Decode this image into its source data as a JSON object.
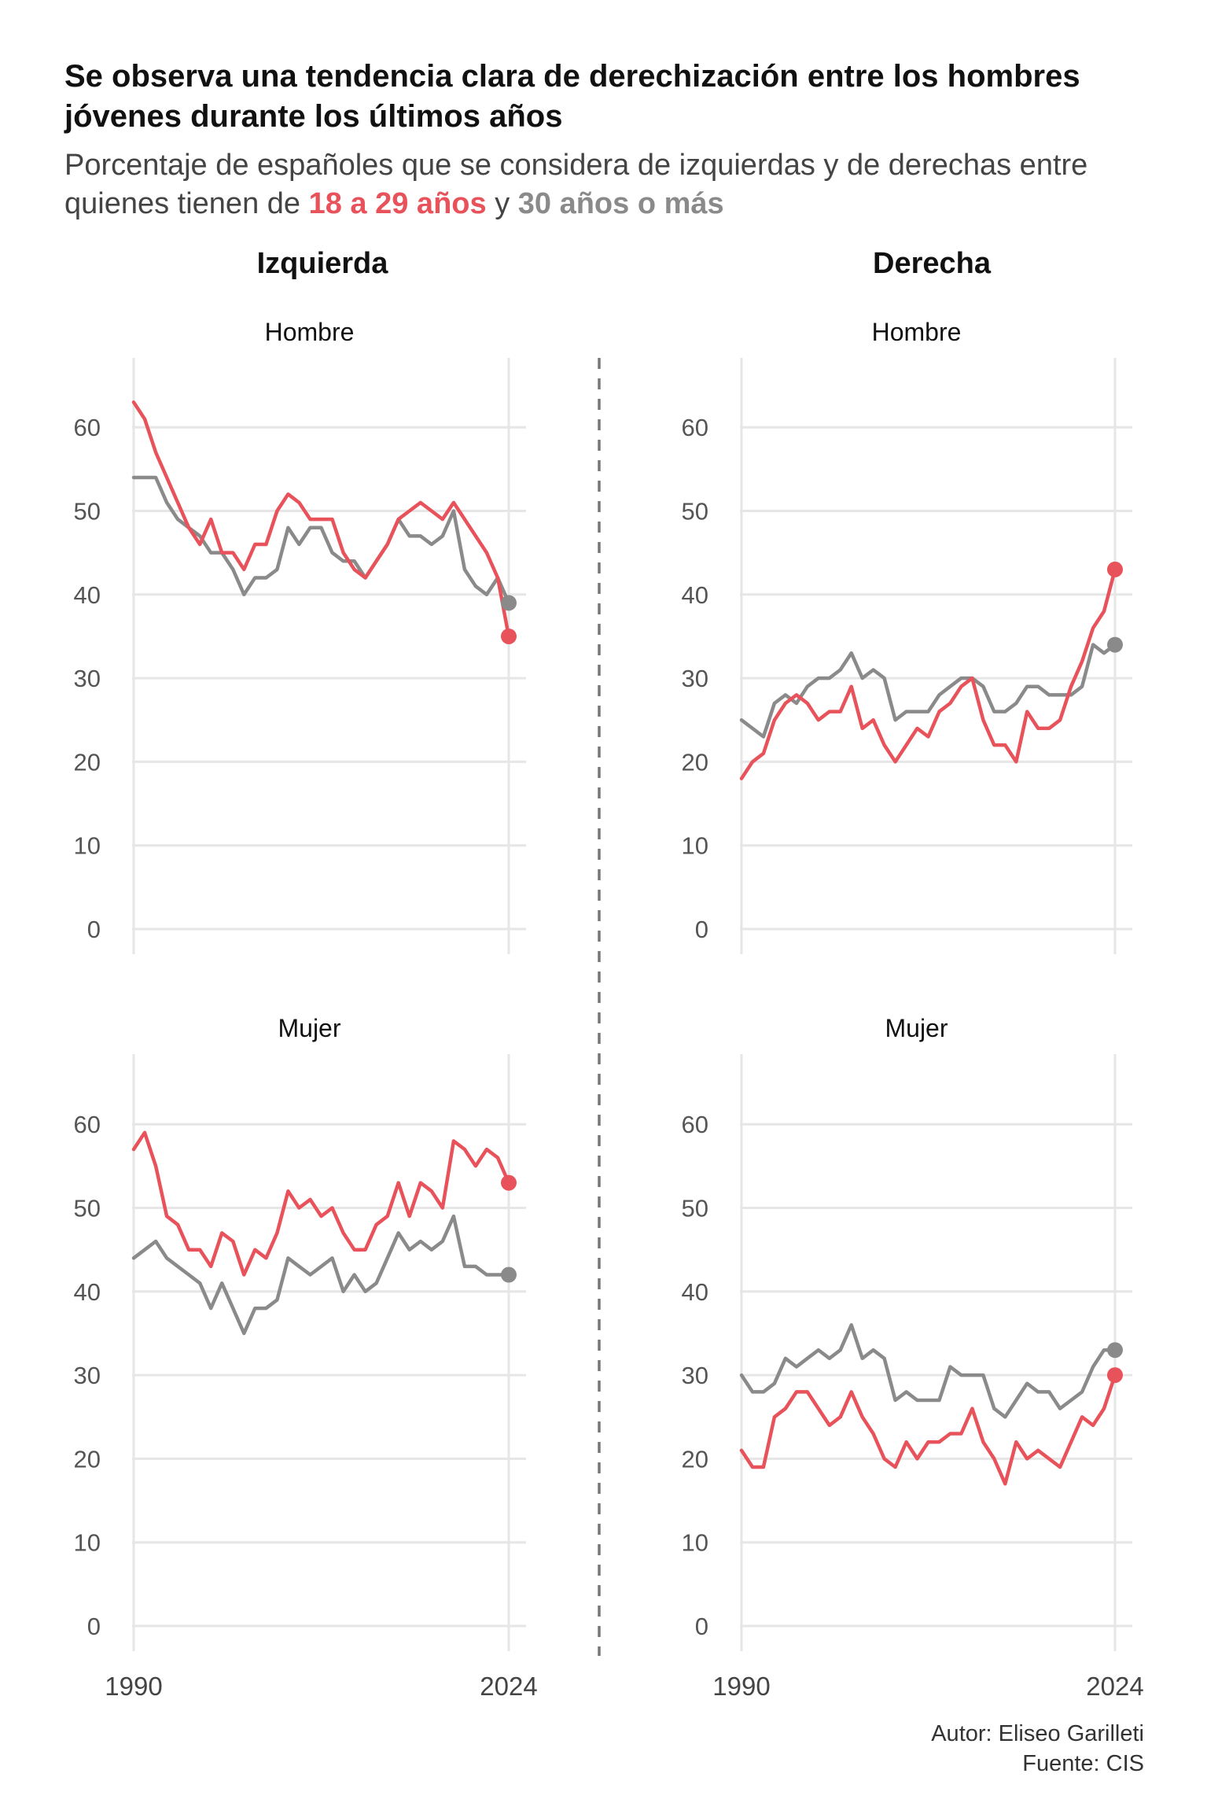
{
  "header": {
    "title": "Se observa una tendencia clara de derechización entre los hombres jóvenes durante los últimos años",
    "subtitle_part1": "Porcentaje de españoles que se considera de izquierdas y de derechas entre quienes tienen de ",
    "subtitle_young": "18 a 29 años",
    "subtitle_mid": " y ",
    "subtitle_old": "30 años o más"
  },
  "columns": {
    "left": "Izquierda",
    "right": "Derecha"
  },
  "caption": {
    "author": "Autor: Eliseo Garilleti",
    "source": "Fuente: CIS"
  },
  "colors": {
    "young": "#e8525a",
    "old": "#8a8a8a",
    "grid": "#e6e6e6",
    "divider": "#777777"
  },
  "chart_data": [
    {
      "type": "line",
      "column": "Izquierda",
      "title": "Hombre",
      "ylim": [
        0,
        65
      ],
      "xlim": [
        1990,
        2024
      ],
      "y_ticks": [
        0,
        10,
        20,
        30,
        40,
        50,
        60
      ],
      "x_ticks": [
        1990,
        2024
      ],
      "series": [
        {
          "name": "18 a 29 años",
          "color": "#e8525a",
          "x": [
            1990,
            1991,
            1992,
            1993,
            1994,
            1995,
            1996,
            1997,
            1998,
            1999,
            2000,
            2001,
            2002,
            2003,
            2004,
            2005,
            2006,
            2007,
            2008,
            2009,
            2010,
            2011,
            2012,
            2013,
            2014,
            2015,
            2016,
            2017,
            2018,
            2019,
            2020,
            2021,
            2022,
            2023,
            2024
          ],
          "y": [
            63,
            61,
            57,
            54,
            51,
            48,
            46,
            49,
            45,
            45,
            43,
            46,
            46,
            50,
            52,
            51,
            49,
            49,
            49,
            45,
            43,
            42,
            44,
            46,
            49,
            50,
            51,
            50,
            49,
            51,
            49,
            47,
            45,
            42,
            35
          ]
        },
        {
          "name": "30 años o más",
          "color": "#8a8a8a",
          "x": [
            1990,
            1991,
            1992,
            1993,
            1994,
            1995,
            1996,
            1997,
            1998,
            1999,
            2000,
            2001,
            2002,
            2003,
            2004,
            2005,
            2006,
            2007,
            2008,
            2009,
            2010,
            2011,
            2012,
            2013,
            2014,
            2015,
            2016,
            2017,
            2018,
            2019,
            2020,
            2021,
            2022,
            2023,
            2024
          ],
          "y": [
            54,
            54,
            54,
            51,
            49,
            48,
            47,
            45,
            45,
            43,
            40,
            42,
            42,
            43,
            48,
            46,
            48,
            48,
            45,
            44,
            44,
            42,
            44,
            46,
            49,
            47,
            47,
            46,
            47,
            50,
            43,
            41,
            40,
            42,
            39
          ]
        }
      ]
    },
    {
      "type": "line",
      "column": "Derecha",
      "title": "Hombre",
      "ylim": [
        0,
        65
      ],
      "xlim": [
        1990,
        2024
      ],
      "y_ticks": [
        0,
        10,
        20,
        30,
        40,
        50,
        60
      ],
      "x_ticks": [
        1990,
        2024
      ],
      "series": [
        {
          "name": "18 a 29 años",
          "color": "#e8525a",
          "x": [
            1990,
            1991,
            1992,
            1993,
            1994,
            1995,
            1996,
            1997,
            1998,
            1999,
            2000,
            2001,
            2002,
            2003,
            2004,
            2005,
            2006,
            2007,
            2008,
            2009,
            2010,
            2011,
            2012,
            2013,
            2014,
            2015,
            2016,
            2017,
            2018,
            2019,
            2020,
            2021,
            2022,
            2023,
            2024
          ],
          "y": [
            18,
            20,
            21,
            25,
            27,
            28,
            27,
            25,
            26,
            26,
            29,
            24,
            25,
            22,
            20,
            22,
            24,
            23,
            26,
            27,
            29,
            30,
            25,
            22,
            22,
            20,
            26,
            24,
            24,
            25,
            29,
            32,
            36,
            38,
            43
          ]
        },
        {
          "name": "30 años o más",
          "color": "#8a8a8a",
          "x": [
            1990,
            1991,
            1992,
            1993,
            1994,
            1995,
            1996,
            1997,
            1998,
            1999,
            2000,
            2001,
            2002,
            2003,
            2004,
            2005,
            2006,
            2007,
            2008,
            2009,
            2010,
            2011,
            2012,
            2013,
            2014,
            2015,
            2016,
            2017,
            2018,
            2019,
            2020,
            2021,
            2022,
            2023,
            2024
          ],
          "y": [
            25,
            24,
            23,
            27,
            28,
            27,
            29,
            30,
            30,
            31,
            33,
            30,
            31,
            30,
            25,
            26,
            26,
            26,
            28,
            29,
            30,
            30,
            29,
            26,
            26,
            27,
            29,
            29,
            28,
            28,
            28,
            29,
            34,
            33,
            34
          ]
        }
      ]
    },
    {
      "type": "line",
      "column": "Izquierda",
      "title": "Mujer",
      "ylim": [
        0,
        65
      ],
      "xlim": [
        1990,
        2024
      ],
      "y_ticks": [
        0,
        10,
        20,
        30,
        40,
        50,
        60
      ],
      "x_ticks": [
        1990,
        2024
      ],
      "series": [
        {
          "name": "18 a 29 años",
          "color": "#e8525a",
          "x": [
            1990,
            1991,
            1992,
            1993,
            1994,
            1995,
            1996,
            1997,
            1998,
            1999,
            2000,
            2001,
            2002,
            2003,
            2004,
            2005,
            2006,
            2007,
            2008,
            2009,
            2010,
            2011,
            2012,
            2013,
            2014,
            2015,
            2016,
            2017,
            2018,
            2019,
            2020,
            2021,
            2022,
            2023,
            2024
          ],
          "y": [
            57,
            59,
            55,
            49,
            48,
            45,
            45,
            43,
            47,
            46,
            42,
            45,
            44,
            47,
            52,
            50,
            51,
            49,
            50,
            47,
            45,
            45,
            48,
            49,
            53,
            49,
            53,
            52,
            50,
            58,
            57,
            55,
            57,
            56,
            53
          ]
        },
        {
          "name": "30 años o más",
          "color": "#8a8a8a",
          "x": [
            1990,
            1991,
            1992,
            1993,
            1994,
            1995,
            1996,
            1997,
            1998,
            1999,
            2000,
            2001,
            2002,
            2003,
            2004,
            2005,
            2006,
            2007,
            2008,
            2009,
            2010,
            2011,
            2012,
            2013,
            2014,
            2015,
            2016,
            2017,
            2018,
            2019,
            2020,
            2021,
            2022,
            2023,
            2024
          ],
          "y": [
            44,
            45,
            46,
            44,
            43,
            42,
            41,
            38,
            41,
            38,
            35,
            38,
            38,
            39,
            44,
            43,
            42,
            43,
            44,
            40,
            42,
            40,
            41,
            44,
            47,
            45,
            46,
            45,
            46,
            49,
            43,
            43,
            42,
            42,
            42
          ]
        }
      ]
    },
    {
      "type": "line",
      "column": "Derecha",
      "title": "Mujer",
      "ylim": [
        0,
        65
      ],
      "xlim": [
        1990,
        2024
      ],
      "y_ticks": [
        0,
        10,
        20,
        30,
        40,
        50,
        60
      ],
      "x_ticks": [
        1990,
        2024
      ],
      "series": [
        {
          "name": "18 a 29 años",
          "color": "#e8525a",
          "x": [
            1990,
            1991,
            1992,
            1993,
            1994,
            1995,
            1996,
            1997,
            1998,
            1999,
            2000,
            2001,
            2002,
            2003,
            2004,
            2005,
            2006,
            2007,
            2008,
            2009,
            2010,
            2011,
            2012,
            2013,
            2014,
            2015,
            2016,
            2017,
            2018,
            2019,
            2020,
            2021,
            2022,
            2023,
            2024
          ],
          "y": [
            21,
            19,
            19,
            25,
            26,
            28,
            28,
            26,
            24,
            25,
            28,
            25,
            23,
            20,
            19,
            22,
            20,
            22,
            22,
            23,
            23,
            26,
            22,
            20,
            17,
            22,
            20,
            21,
            20,
            19,
            22,
            25,
            24,
            26,
            30
          ]
        },
        {
          "name": "30 años o más",
          "color": "#8a8a8a",
          "x": [
            1990,
            1991,
            1992,
            1993,
            1994,
            1995,
            1996,
            1997,
            1998,
            1999,
            2000,
            2001,
            2002,
            2003,
            2004,
            2005,
            2006,
            2007,
            2008,
            2009,
            2010,
            2011,
            2012,
            2013,
            2014,
            2015,
            2016,
            2017,
            2018,
            2019,
            2020,
            2021,
            2022,
            2023,
            2024
          ],
          "y": [
            30,
            28,
            28,
            29,
            32,
            31,
            32,
            33,
            32,
            33,
            36,
            32,
            33,
            32,
            27,
            28,
            27,
            27,
            27,
            31,
            30,
            30,
            30,
            26,
            25,
            27,
            29,
            28,
            28,
            26,
            27,
            28,
            31,
            33,
            33
          ]
        }
      ]
    }
  ]
}
